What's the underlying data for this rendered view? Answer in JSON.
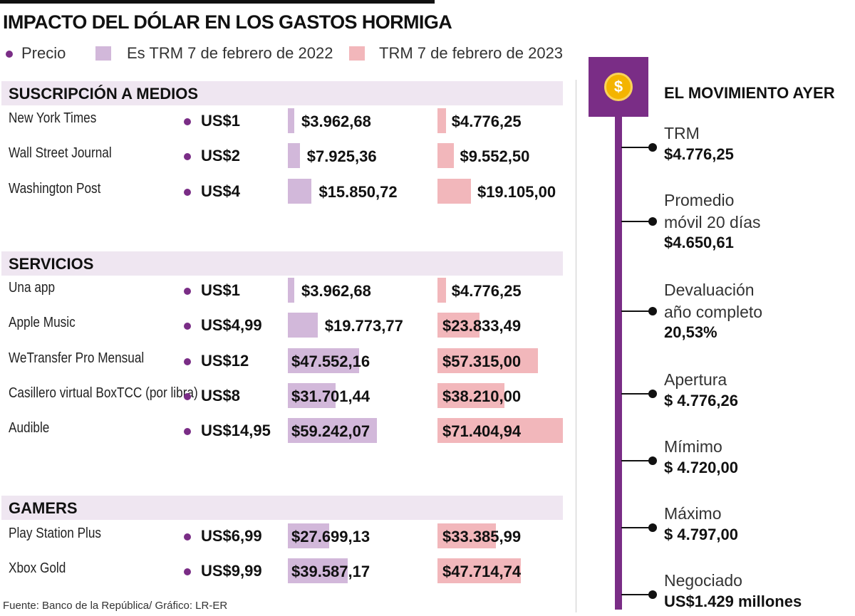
{
  "title": "IMPACTO DEL DÓLAR EN LOS GASTOS HORMIGA",
  "legend": {
    "price": "Precio",
    "series_2022": "Es TRM 7 de febrero de 2022",
    "series_2023": "TRM 7 de febrero de 2023"
  },
  "colors": {
    "price_dot": "#7a2d86",
    "bar_2022": "#d2b8da",
    "bar_2023": "#f2b7bb",
    "accent": "#7a2d86",
    "section_bg": "#efe6f1"
  },
  "chart_data": {
    "type": "bar",
    "series": [
      {
        "name": "Es TRM 7 de febrero de 2022"
      },
      {
        "name": "TRM 7 de febrero de 2023"
      }
    ],
    "sections": [
      {
        "name": "SUSCRIPCIÓN A MEDIOS",
        "items": [
          {
            "label": "New York Times",
            "price": "US$1",
            "v2022": 3962.68,
            "v2022_label": "$3.962,68",
            "v2023": 4776.25,
            "v2023_label": "$4.776,25"
          },
          {
            "label": "Wall Street Journal",
            "price": "US$2",
            "v2022": 7925.36,
            "v2022_label": "$7.925,36",
            "v2023": 9552.5,
            "v2023_label": "$9.552,50"
          },
          {
            "label": "Washington Post",
            "price": "US$4",
            "v2022": 15850.72,
            "v2022_label": "$15.850,72",
            "v2023": 19105.0,
            "v2023_label": "$19.105,00"
          }
        ]
      },
      {
        "name": "SERVICIOS",
        "items": [
          {
            "label": "Una app",
            "price": "US$1",
            "v2022": 3962.68,
            "v2022_label": "$3.962,68",
            "v2023": 4776.25,
            "v2023_label": "$4.776,25"
          },
          {
            "label": "Apple Music",
            "price": "US$4,99",
            "v2022": 19773.77,
            "v2022_label": "$19.773,77",
            "v2023": 23833.49,
            "v2023_label": "$23.833,49"
          },
          {
            "label": "WeTransfer Pro Mensual",
            "price": "US$12",
            "v2022": 47552.16,
            "v2022_label": "$47.552,16",
            "v2023": 57315.0,
            "v2023_label": "$57.315,00"
          },
          {
            "label": "Casillero virtual BoxTCC (por libra)",
            "price": "US$8",
            "v2022": 31701.44,
            "v2022_label": "$31.701,44",
            "v2023": 38210.0,
            "v2023_label": "$38.210,00"
          },
          {
            "label": "Audible",
            "price": "US$14,95",
            "v2022": 59242.07,
            "v2022_label": "$59.242,07",
            "v2023": 71404.94,
            "v2023_label": "$71.404,94"
          }
        ]
      },
      {
        "name": "GAMERS",
        "items": [
          {
            "label": "Play Station Plus",
            "price": "US$6,99",
            "v2022": 27699.13,
            "v2022_label": "$27.699,13",
            "v2023": 33385.99,
            "v2023_label": "$33.385,99"
          },
          {
            "label": "Xbox Gold",
            "price": "US$9,99",
            "v2022": 39587.17,
            "v2022_label": "$39.587,17",
            "v2023": 47714.74,
            "v2023_label": "$47.714,74"
          }
        ]
      }
    ]
  },
  "sidebar": {
    "icon": "dollar-coin-icon",
    "title": "EL MOVIMIENTO AYER",
    "stats": [
      {
        "label": "TRM",
        "value": "$4.776,25"
      },
      {
        "label": "Promedio\nmóvil 20 días",
        "value": "$4.650,61"
      },
      {
        "label": "Devaluación\naño completo",
        "value": "20,53%"
      },
      {
        "label": "Apertura",
        "value": "$ 4.776,26"
      },
      {
        "label": "Mímimo",
        "value": "$ 4.720,00"
      },
      {
        "label": "Máximo",
        "value": "$ 4.797,00"
      },
      {
        "label": "Negociado",
        "value": "US$1.429 millones"
      }
    ]
  },
  "source": "Fuente: Banco de la República/ Gráfico: LR-ER"
}
